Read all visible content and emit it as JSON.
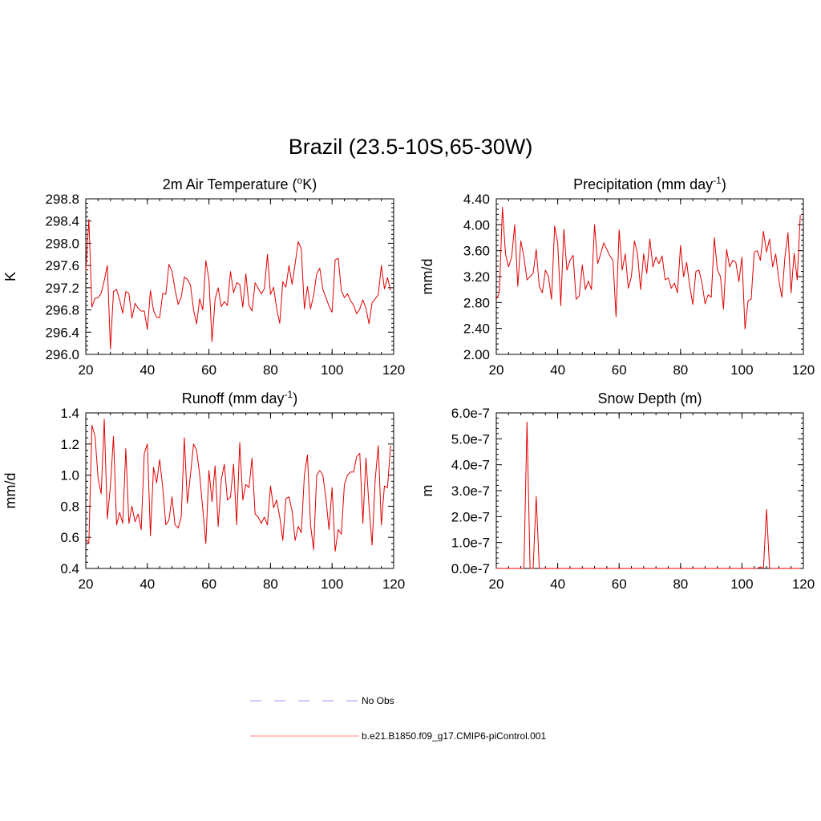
{
  "title": "Brazil (23.5-10S,65-30W)",
  "legend": {
    "items": [
      {
        "label": "No Obs",
        "color": "#9999ff",
        "style": "dashed"
      },
      {
        "label": "b.e21.B1850.f09_g17.CMIP6-piControl.001",
        "color": "#ff8080",
        "style": "solid"
      }
    ]
  },
  "chart_data": [
    {
      "type": "line",
      "title": "2m Air Temperature (oK)",
      "title_base": "2m Air Temperature (",
      "title_sup": "o",
      "title_after": "K)",
      "ylabel": "K",
      "xlim": [
        20,
        120
      ],
      "ylim": [
        296.0,
        298.8
      ],
      "x_ticks": [
        20,
        40,
        60,
        80,
        100,
        120
      ],
      "y_ticks": [
        "296.0",
        "296.4",
        "296.8",
        "297.2",
        "297.6",
        "298.0",
        "298.4",
        "298.8"
      ],
      "series_color": "#e00000",
      "x_start": 20,
      "values": [
        297.5,
        298.43,
        296.85,
        297.01,
        297.02,
        297.1,
        297.33,
        297.6,
        296.1,
        297.13,
        297.17,
        296.98,
        296.74,
        297.13,
        297.1,
        296.65,
        296.92,
        296.83,
        296.78,
        296.78,
        296.45,
        297.15,
        296.79,
        296.67,
        296.66,
        297.1,
        297.08,
        297.62,
        297.5,
        297.16,
        296.9,
        297.03,
        297.39,
        297.35,
        297.25,
        296.8,
        296.55,
        297.0,
        296.8,
        297.69,
        297.35,
        296.23,
        296.99,
        297.2,
        296.86,
        296.95,
        296.88,
        297.49,
        297.11,
        297.29,
        297.26,
        296.85,
        297.45,
        296.88,
        296.78,
        297.29,
        297.19,
        297.09,
        297.18,
        297.8,
        297.08,
        297.21,
        296.82,
        296.56,
        297.31,
        297.21,
        297.6,
        297.26,
        297.63,
        298.03,
        297.9,
        296.82,
        297.22,
        296.82,
        297.06,
        297.45,
        297.55,
        297.17,
        297.02,
        296.87,
        296.76,
        297.7,
        297.73,
        297.15,
        297.02,
        297.09,
        296.97,
        296.88,
        296.73,
        296.82,
        296.98,
        296.83,
        296.55,
        296.93,
        297.0,
        297.07,
        297.6,
        297.18,
        297.38,
        297.15
      ]
    },
    {
      "type": "line",
      "title": "Precipitation (mm day-1)",
      "title_base": "Precipitation (mm day",
      "title_sup": "-1",
      "title_after": ")",
      "ylabel": "mm/d",
      "xlim": [
        20,
        120
      ],
      "ylim": [
        2.0,
        4.4
      ],
      "x_ticks": [
        20,
        40,
        60,
        80,
        100,
        120
      ],
      "y_ticks": [
        "2.00",
        "2.40",
        "2.80",
        "3.20",
        "3.60",
        "4.00",
        "4.40"
      ],
      "series_color": "#e00000",
      "x_start": 20,
      "values": [
        2.85,
        2.95,
        4.27,
        3.55,
        3.35,
        3.5,
        4.0,
        3.05,
        3.75,
        3.5,
        3.15,
        3.2,
        3.25,
        3.62,
        3.05,
        2.95,
        3.3,
        3.2,
        2.85,
        3.98,
        3.72,
        2.75,
        3.93,
        3.3,
        3.45,
        3.53,
        2.85,
        2.9,
        3.38,
        3.0,
        3.13,
        3.0,
        4.0,
        3.4,
        3.55,
        3.72,
        3.62,
        3.52,
        3.45,
        2.58,
        3.92,
        3.3,
        3.55,
        3.02,
        3.2,
        3.75,
        3.55,
        3.0,
        3.55,
        3.25,
        3.78,
        3.35,
        3.5,
        3.4,
        3.52,
        3.15,
        3.18,
        3.02,
        3.1,
        2.95,
        3.68,
        3.2,
        3.42,
        3.05,
        2.77,
        3.28,
        3.3,
        3.1,
        2.78,
        2.92,
        2.88,
        3.8,
        3.3,
        3.2,
        2.7,
        3.62,
        3.35,
        3.45,
        3.42,
        3.12,
        3.5,
        2.39,
        2.83,
        2.85,
        3.58,
        3.6,
        3.45,
        3.9,
        3.58,
        3.78,
        3.35,
        3.55,
        3.15,
        2.88,
        3.5,
        3.88,
        2.95,
        3.56,
        3.15,
        4.15
      ]
    },
    {
      "type": "line",
      "title": "Runoff (mm day-1)",
      "title_base": "Runoff (mm day",
      "title_sup": "-1",
      "title_after": ")",
      "ylabel": "mm/d",
      "xlim": [
        20,
        120
      ],
      "ylim": [
        0.4,
        1.4
      ],
      "x_ticks": [
        20,
        40,
        60,
        80,
        100,
        120
      ],
      "y_ticks": [
        "0.4",
        "0.6",
        "0.8",
        "1.0",
        "1.2",
        "1.4"
      ],
      "series_color": "#e00000",
      "x_start": 20,
      "values": [
        0.59,
        0.56,
        1.32,
        1.25,
        0.98,
        0.88,
        1.36,
        0.72,
        0.93,
        1.25,
        0.68,
        0.76,
        0.69,
        1.17,
        0.69,
        0.8,
        0.7,
        0.75,
        0.65,
        1.14,
        1.2,
        0.61,
        1.05,
        0.95,
        1.1,
        0.92,
        0.68,
        0.71,
        0.86,
        0.68,
        0.66,
        0.73,
        1.24,
        0.82,
        1.0,
        1.2,
        1.16,
        1.0,
        0.78,
        0.56,
        1.03,
        0.83,
        1.06,
        0.67,
        0.97,
        1.07,
        0.84,
        0.86,
        1.07,
        0.68,
        1.21,
        0.84,
        0.94,
        0.92,
        1.11,
        0.75,
        0.73,
        0.69,
        0.73,
        0.68,
        0.93,
        0.79,
        0.84,
        0.73,
        0.58,
        0.85,
        0.86,
        0.77,
        0.58,
        0.67,
        0.63,
        1.0,
        1.13,
        0.68,
        0.52,
        1.0,
        1.03,
        1.0,
        0.85,
        0.65,
        0.92,
        0.51,
        0.65,
        0.62,
        0.94,
        1.0,
        1.02,
        1.02,
        1.12,
        1.14,
        0.69,
        1.11,
        0.8,
        0.55,
        0.97,
        1.19,
        0.68,
        0.93,
        0.92,
        1.19
      ]
    },
    {
      "type": "line",
      "title": "Snow Depth (m)",
      "title_base": "Snow Depth (m)",
      "title_sup": "",
      "title_after": "",
      "ylabel": "m",
      "xlim": [
        20,
        120
      ],
      "ylim": [
        0.0,
        6e-07
      ],
      "x_ticks": [
        20,
        40,
        60,
        80,
        100,
        120
      ],
      "y_ticks": [
        "0.0e-7",
        "1.0e-7",
        "2.0e-7",
        "3.0e-7",
        "4.0e-7",
        "5.0e-7",
        "6.0e-7"
      ],
      "series_color": "#e00000",
      "x_start": 20,
      "values": [
        0,
        0,
        0,
        0,
        0,
        0,
        0,
        0,
        0,
        0,
        5.65e-07,
        0,
        0,
        2.78e-07,
        0,
        0,
        0,
        0,
        0,
        0,
        0,
        0,
        0,
        0,
        0,
        0,
        0,
        0,
        0,
        0,
        0,
        0,
        0,
        0,
        0,
        0,
        0,
        0,
        0,
        0,
        0,
        0,
        0,
        0,
        0,
        0,
        0,
        0,
        0,
        0,
        0,
        0,
        0,
        0,
        0,
        0,
        0,
        0,
        0,
        0,
        0,
        0,
        0,
        0,
        0,
        0,
        0,
        0,
        0,
        0,
        0,
        0,
        0,
        0,
        0,
        0,
        0,
        0,
        0,
        0,
        0,
        0,
        0,
        0,
        0,
        0,
        6e-09,
        0,
        2.28e-07,
        0,
        0,
        0,
        0,
        0,
        0,
        0,
        0,
        0,
        0,
        0
      ]
    }
  ]
}
